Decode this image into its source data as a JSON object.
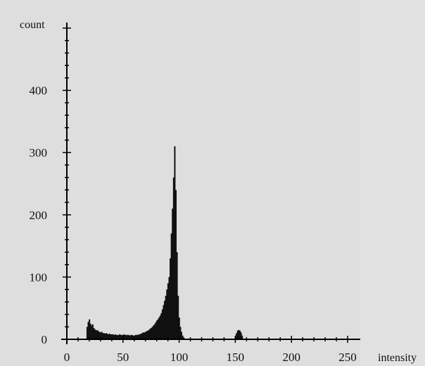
{
  "chart_data": {
    "type": "bar",
    "title": "",
    "xlabel": "intensity",
    "ylabel": "count",
    "xlim": [
      0,
      255
    ],
    "ylim": [
      0,
      500
    ],
    "xticks": [
      0,
      50,
      100,
      150,
      200,
      250
    ],
    "yticks": [
      0,
      100,
      200,
      300,
      400
    ],
    "grid": false,
    "legend": "none",
    "bar_color": "#111111",
    "x": [
      18,
      19,
      20,
      21,
      22,
      23,
      24,
      25,
      26,
      27,
      28,
      29,
      30,
      31,
      32,
      33,
      34,
      35,
      36,
      37,
      38,
      39,
      40,
      41,
      42,
      43,
      44,
      45,
      46,
      47,
      48,
      49,
      50,
      51,
      52,
      53,
      54,
      55,
      56,
      57,
      58,
      59,
      60,
      61,
      62,
      63,
      64,
      65,
      66,
      67,
      68,
      69,
      70,
      71,
      72,
      73,
      74,
      75,
      76,
      77,
      78,
      79,
      80,
      81,
      82,
      83,
      84,
      85,
      86,
      87,
      88,
      89,
      90,
      91,
      92,
      93,
      94,
      95,
      96,
      97,
      98,
      99,
      100,
      101,
      102,
      103,
      104,
      150,
      151,
      152,
      153,
      154,
      155,
      156
    ],
    "values": [
      20,
      28,
      32,
      25,
      22,
      24,
      18,
      16,
      14,
      15,
      13,
      12,
      11,
      12,
      10,
      10,
      9,
      10,
      9,
      8,
      9,
      8,
      8,
      8,
      7,
      8,
      7,
      7,
      7,
      8,
      7,
      7,
      7,
      8,
      7,
      7,
      7,
      7,
      6,
      7,
      7,
      6,
      6,
      7,
      7,
      7,
      8,
      8,
      9,
      10,
      11,
      11,
      12,
      13,
      14,
      15,
      17,
      18,
      20,
      22,
      24,
      27,
      30,
      32,
      35,
      38,
      42,
      48,
      55,
      62,
      70,
      80,
      90,
      100,
      130,
      170,
      210,
      260,
      310,
      240,
      140,
      70,
      35,
      20,
      12,
      6,
      3,
      6,
      10,
      14,
      15,
      14,
      11,
      6
    ]
  }
}
